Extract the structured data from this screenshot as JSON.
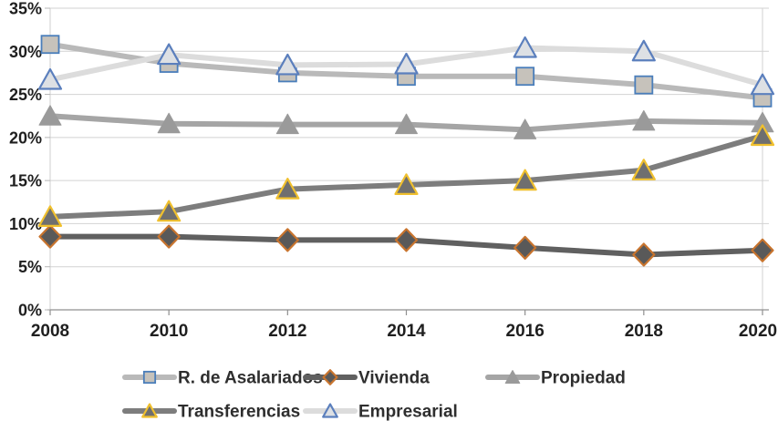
{
  "figure": {
    "background": "#ffffff"
  },
  "chart_data": {
    "type": "line",
    "title": "",
    "xlabel": "",
    "ylabel": "",
    "x_categories": [
      "2008",
      "2010",
      "2012",
      "2014",
      "2016",
      "2018",
      "2020"
    ],
    "y_axis": {
      "min": 0,
      "max": 35,
      "step": 5,
      "tick_labels": [
        "0%",
        "5%",
        "10%",
        "15%",
        "20%",
        "25%",
        "30%",
        "35%"
      ]
    },
    "grid": "horizontal",
    "legend_position": "bottom",
    "series": [
      {
        "name": "R. de Asalariados",
        "marker": "square",
        "colors": {
          "line": "#b9b9b9",
          "fill": "#c6c2bb",
          "stroke": "#4a7ebb"
        },
        "values": [
          30.8,
          28.6,
          27.5,
          27.1,
          27.1,
          26.1,
          24.6
        ]
      },
      {
        "name": "Vivienda",
        "marker": "diamond",
        "colors": {
          "line": "#606060",
          "fill": "#595959",
          "stroke": "#c8742e"
        },
        "values": [
          8.5,
          8.5,
          8.1,
          8.1,
          7.2,
          6.4,
          6.9
        ]
      },
      {
        "name": "Propiedad",
        "marker": "triangle",
        "colors": {
          "line": "#a5a5a5",
          "fill": "#9a9a9a",
          "stroke": "#9a9a9a"
        },
        "values": [
          22.5,
          21.6,
          21.5,
          21.5,
          20.9,
          21.9,
          21.7
        ]
      },
      {
        "name": "Transferencias",
        "marker": "triangle",
        "colors": {
          "line": "#7d7d7d",
          "fill": "#6f6f6f",
          "stroke": "#f0c02e"
        },
        "values": [
          10.8,
          11.4,
          14.0,
          14.5,
          15.0,
          16.2,
          20.2
        ]
      },
      {
        "name": "Empresarial",
        "marker": "triangle",
        "colors": {
          "line": "#dcdcdc",
          "fill": "#dde0e4",
          "stroke": "#5b7fbd"
        },
        "values": [
          26.7,
          29.6,
          28.4,
          28.5,
          30.4,
          30.0,
          26.1
        ]
      }
    ],
    "legend_rows": [
      [
        0,
        1,
        2
      ],
      [
        3,
        4
      ]
    ]
  }
}
